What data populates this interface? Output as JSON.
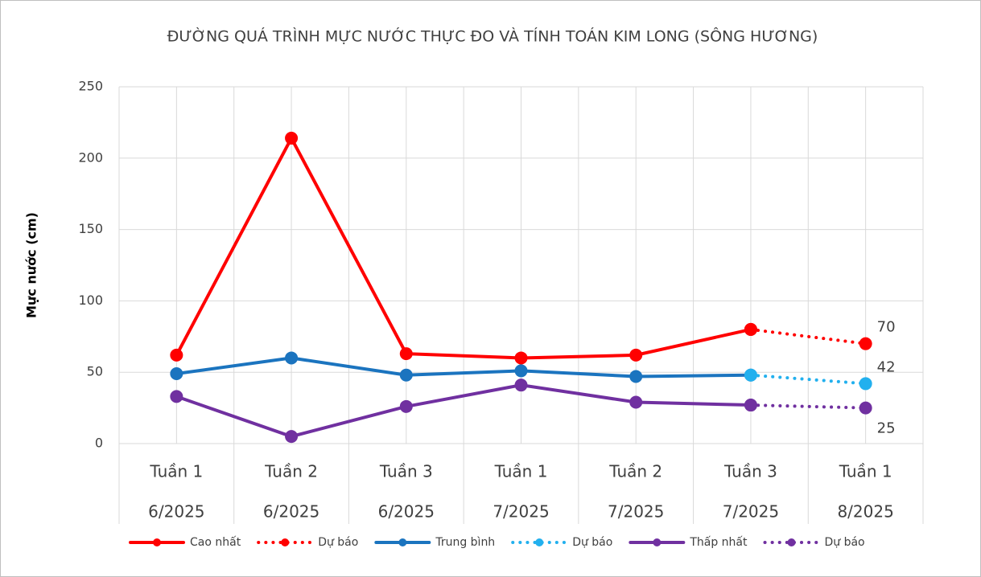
{
  "chart_data": {
    "type": "line",
    "title": "ĐƯỜNG QUÁ TRÌNH MỰC NƯỚC THỰC ĐO VÀ TÍNH TOÁN KIM LONG (SÔNG HƯƠNG)",
    "ylabel": "Mực nước (cm)",
    "categories": [
      [
        "Tuần 1",
        "6/2025"
      ],
      [
        "Tuần 2",
        "6/2025"
      ],
      [
        "Tuần 3",
        "6/2025"
      ],
      [
        "Tuần 1",
        "7/2025"
      ],
      [
        "Tuần 2",
        "7/2025"
      ],
      [
        "Tuần 3",
        "7/2025"
      ],
      [
        "Tuần 1",
        "8/2025"
      ]
    ],
    "ylim": [
      0,
      250
    ],
    "yticks": [
      0,
      50,
      100,
      150,
      200,
      250
    ],
    "grid": true,
    "legend": "bottom",
    "series": [
      {
        "name": "Cao nhất",
        "color": "#ff0000",
        "dash": "solid",
        "values": [
          62,
          214,
          63,
          60,
          62,
          80,
          null
        ]
      },
      {
        "name": "Dự báo",
        "color": "#ff0000",
        "dash": "dotted",
        "data_labels": "last",
        "values": [
          null,
          null,
          null,
          null,
          null,
          80,
          70
        ]
      },
      {
        "name": "Trung bình",
        "color": "#1b74bf",
        "dash": "solid",
        "values": [
          49,
          60,
          48,
          51,
          47,
          48,
          null
        ]
      },
      {
        "name": "Dự báo",
        "color": "#22b0ee",
        "dash": "dotted",
        "data_labels": "last",
        "values": [
          null,
          null,
          null,
          null,
          null,
          48,
          42
        ]
      },
      {
        "name": "Thấp nhất",
        "color": "#7030a0",
        "dash": "solid",
        "values": [
          33,
          5,
          26,
          41,
          29,
          27,
          null
        ]
      },
      {
        "name": "Dự báo",
        "color": "#7030a0",
        "dash": "dotted",
        "data_labels": "last",
        "values": [
          null,
          null,
          null,
          null,
          null,
          27,
          25
        ]
      }
    ]
  }
}
